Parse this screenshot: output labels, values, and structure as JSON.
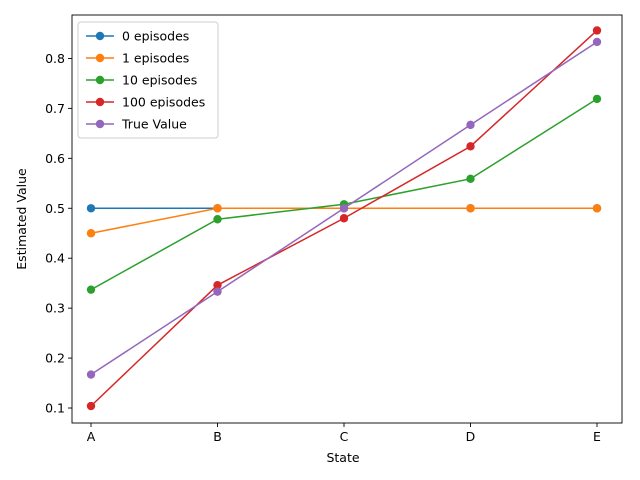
{
  "chart_data": {
    "type": "line",
    "title": "",
    "xlabel": "State",
    "ylabel": "Estimated Value",
    "categories": [
      "A",
      "B",
      "C",
      "D",
      "E"
    ],
    "ylim": [
      0.07,
      0.887
    ],
    "yticks": [
      0.1,
      0.2,
      0.3,
      0.4,
      0.5,
      0.6,
      0.7,
      0.8
    ],
    "ytick_labels": [
      "0.1",
      "0.2",
      "0.3",
      "0.4",
      "0.5",
      "0.6",
      "0.7",
      "0.8"
    ],
    "grid": false,
    "legend": "top-left",
    "series": [
      {
        "name": "0 episodes",
        "color": "#1f77b4",
        "values": [
          0.5,
          0.5,
          0.5,
          0.5,
          0.5
        ]
      },
      {
        "name": "1 episodes",
        "color": "#ff7f0e",
        "values": [
          0.45,
          0.5,
          0.5,
          0.5,
          0.5
        ]
      },
      {
        "name": "10 episodes",
        "color": "#2ca02c",
        "values": [
          0.337,
          0.478,
          0.508,
          0.559,
          0.719
        ]
      },
      {
        "name": "100 episodes",
        "color": "#d62728",
        "values": [
          0.104,
          0.346,
          0.48,
          0.624,
          0.856
        ]
      },
      {
        "name": "True Value",
        "color": "#9467bd",
        "values": [
          0.167,
          0.333,
          0.5,
          0.667,
          0.833
        ]
      }
    ]
  }
}
